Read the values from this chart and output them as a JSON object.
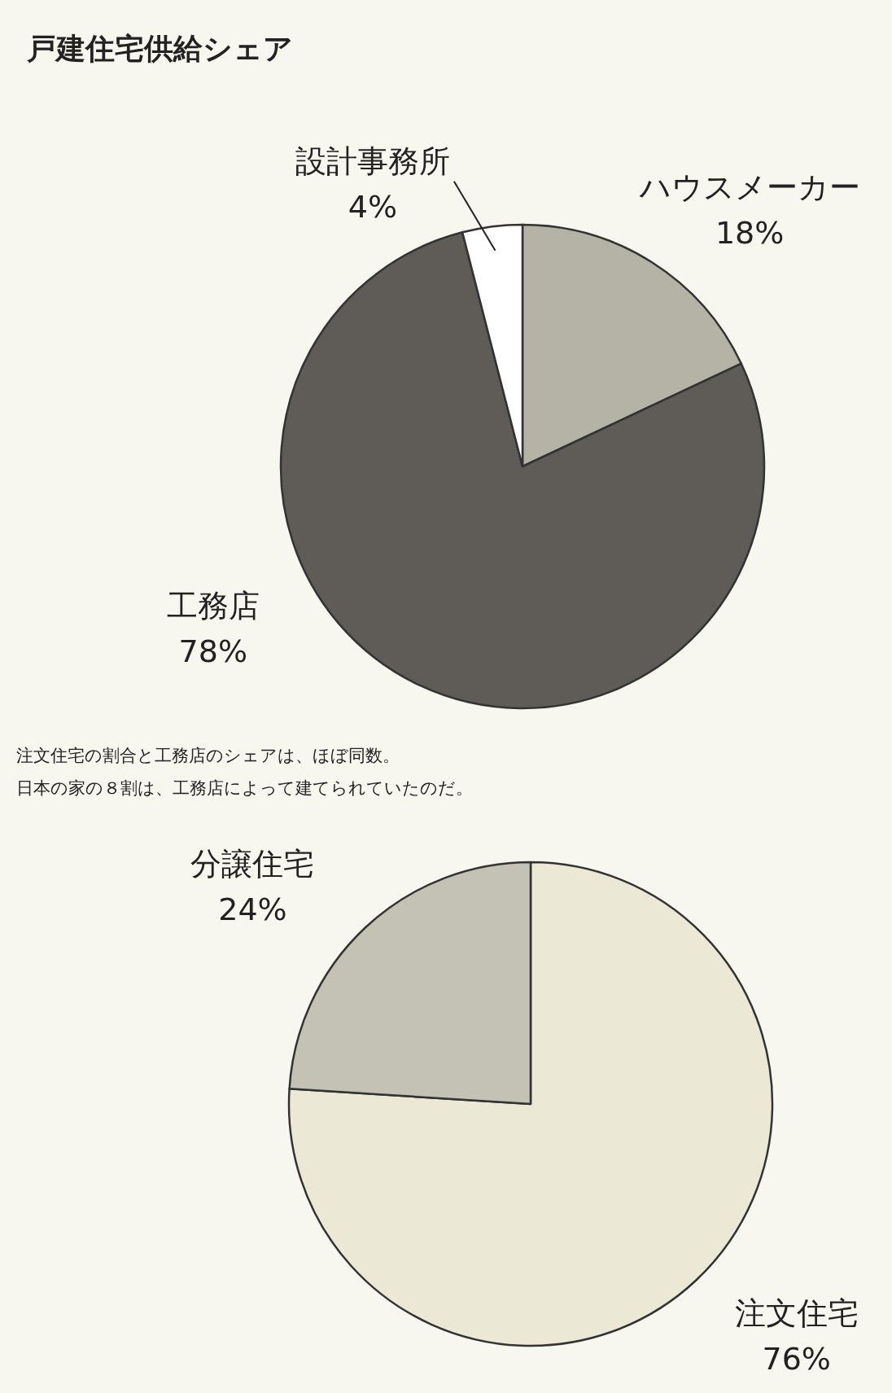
{
  "chart_data": [
    {
      "type": "pie",
      "title": "戸建住宅供給シェア",
      "categories": [
        "ハウスメーカー",
        "工務店",
        "設計事務所"
      ],
      "values": [
        18,
        78,
        4
      ],
      "colors": [
        "#b4b3a6",
        "#5f5b56",
        "#ffffff"
      ],
      "value_labels": [
        "18%",
        "78%",
        "4%"
      ],
      "annotations": [
        "注文住宅の割合と工務店のシェアは、ほぼ同数。",
        "日本の家の８割は、工務店によって建てられていたのだ。"
      ]
    },
    {
      "type": "pie",
      "categories": [
        "注文住宅",
        "分譲住宅"
      ],
      "values": [
        76,
        24
      ],
      "colors": [
        "#ebe8d6",
        "#c4c2b4"
      ],
      "value_labels": [
        "76%",
        "24%"
      ]
    }
  ]
}
